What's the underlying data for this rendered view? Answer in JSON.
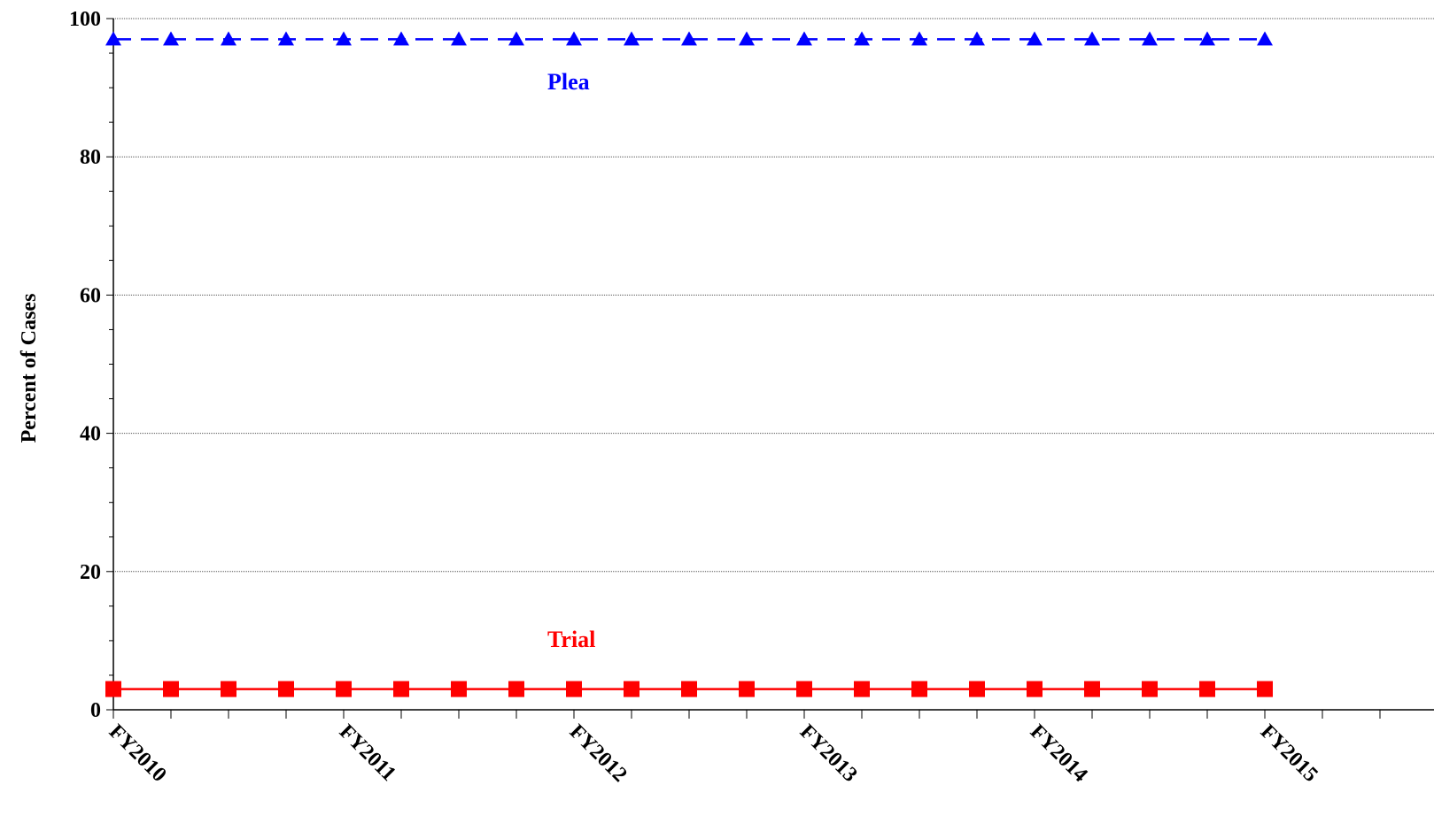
{
  "chart_data": {
    "type": "line",
    "title": "",
    "xlabel": "",
    "ylabel": "Percent of Cases",
    "ylim": [
      0,
      100
    ],
    "yticks": [
      0,
      20,
      40,
      60,
      80,
      100
    ],
    "x_tick_labels": [
      "FY2010",
      "FY2011",
      "FY2012",
      "FY2013",
      "FY2014",
      "FY2015"
    ],
    "points_per_year": 4,
    "grid": true,
    "series": [
      {
        "name": "Plea",
        "color": "#0000ff",
        "style": "dashed",
        "marker": "triangle",
        "values": [
          97,
          97,
          97,
          97,
          97,
          97,
          97,
          97,
          97,
          97,
          97,
          97,
          97,
          97,
          97,
          97,
          97,
          97,
          97,
          97,
          97
        ]
      },
      {
        "name": "Trial",
        "color": "#ff0000",
        "style": "solid",
        "marker": "square",
        "values": [
          3,
          3,
          3,
          3,
          3,
          3,
          3,
          3,
          3,
          3,
          3,
          3,
          3,
          3,
          3,
          3,
          3,
          3,
          3,
          3,
          3
        ]
      }
    ]
  }
}
